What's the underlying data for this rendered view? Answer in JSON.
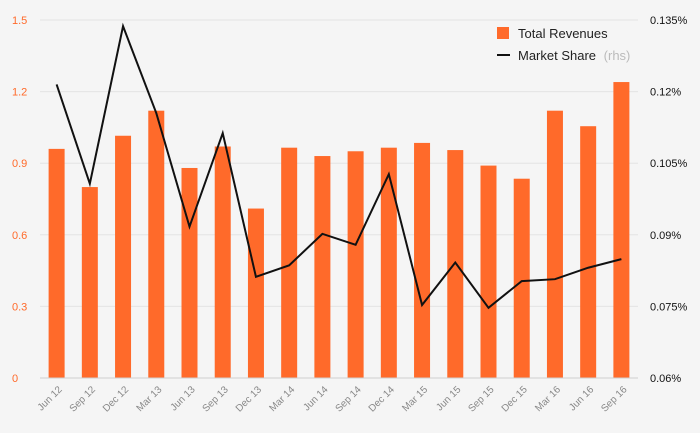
{
  "chart_data": {
    "type": "bar+line",
    "categories": [
      "Jun 12",
      "Sep 12",
      "Dec 12",
      "Mar 13",
      "Jun 13",
      "Sep 13",
      "Dec 13",
      "Mar 14",
      "Jun 14",
      "Sep 14",
      "Dec 14",
      "Mar 15",
      "Jun 15",
      "Sep 15",
      "Dec 15",
      "Mar 16",
      "Jun 16",
      "Sep 16"
    ],
    "series": [
      {
        "name": "Total Revenues",
        "type": "bar",
        "axis": "left",
        "color": "#ff6a2a",
        "values": [
          0.96,
          0.8,
          1.015,
          1.12,
          0.88,
          0.97,
          0.71,
          0.965,
          0.93,
          0.95,
          0.965,
          0.985,
          0.955,
          0.89,
          0.835,
          1.12,
          1.055,
          1.24
        ]
      },
      {
        "name": "Market Share",
        "name_suffix": "(rhs)",
        "type": "line",
        "axis": "right",
        "color": "#111111",
        "values": [
          0.1215,
          0.1007,
          0.1337,
          0.1155,
          0.0917,
          0.1113,
          0.0812,
          0.0836,
          0.0902,
          0.0879,
          0.1027,
          0.0753,
          0.0842,
          0.0747,
          0.0803,
          0.0807,
          0.0831,
          0.0849
        ]
      }
    ],
    "left_axis": {
      "min": 0,
      "max": 1.5,
      "ticks": [
        0,
        0.3,
        0.6,
        0.9,
        1.2,
        1.5
      ],
      "tick_labels": [
        "0",
        "0.3",
        "0.6",
        "0.9",
        "1.2",
        "1.5"
      ]
    },
    "right_axis": {
      "min": 0.06,
      "max": 0.135,
      "ticks": [
        0.06,
        0.075,
        0.09,
        0.105,
        0.12,
        0.135
      ],
      "tick_labels": [
        "0.06%",
        "0.075%",
        "0.09%",
        "0.105%",
        "0.12%",
        "0.135%"
      ]
    },
    "legend": {
      "position": "top-right"
    },
    "grid": true,
    "title": "",
    "xlabel": "",
    "ylabel": ""
  }
}
